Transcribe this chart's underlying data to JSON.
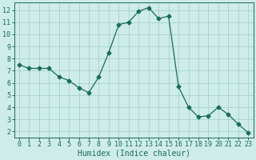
{
  "x": [
    0,
    1,
    2,
    3,
    4,
    5,
    6,
    7,
    8,
    9,
    10,
    11,
    12,
    13,
    14,
    15,
    16,
    17,
    18,
    19,
    20,
    21,
    22,
    23
  ],
  "y": [
    7.5,
    7.2,
    7.2,
    7.2,
    6.5,
    6.2,
    5.6,
    5.2,
    6.5,
    8.5,
    10.8,
    11.0,
    11.9,
    12.2,
    11.3,
    11.5,
    5.7,
    4.0,
    3.2,
    3.3,
    4.0,
    3.4,
    2.6,
    1.9
  ],
  "line_color": "#1a6b5a",
  "marker": "D",
  "marker_size": 2.5,
  "background_color": "#ceecea",
  "grid_color": "#9eccc8",
  "xlabel": "Humidex (Indice chaleur)",
  "xlabel_fontsize": 7,
  "tick_fontsize": 6,
  "ylim": [
    1.5,
    12.6
  ],
  "xlim": [
    -0.5,
    23.5
  ],
  "yticks": [
    2,
    3,
    4,
    5,
    6,
    7,
    8,
    9,
    10,
    11,
    12
  ],
  "xticks": [
    0,
    1,
    2,
    3,
    4,
    5,
    6,
    7,
    8,
    9,
    10,
    11,
    12,
    13,
    14,
    15,
    16,
    17,
    18,
    19,
    20,
    21,
    22,
    23
  ]
}
